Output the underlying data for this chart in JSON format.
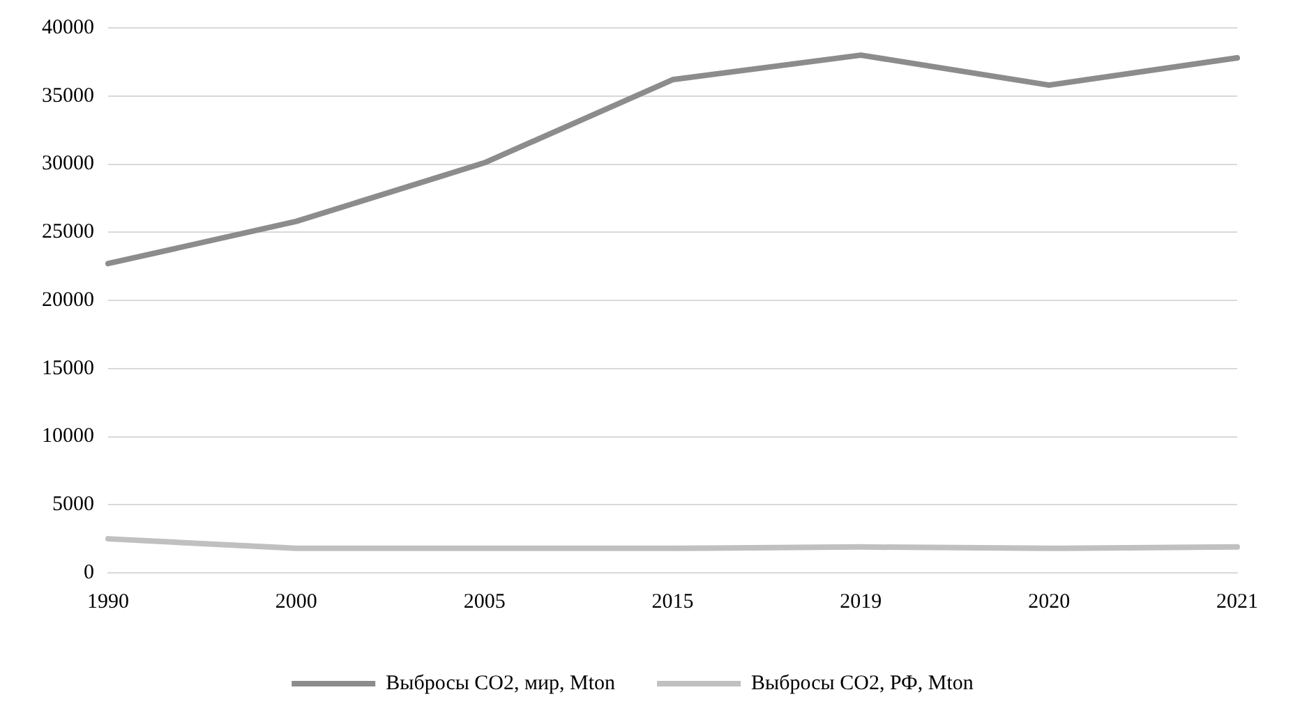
{
  "chart_data": {
    "type": "line",
    "categories": [
      "1990",
      "2000",
      "2005",
      "2015",
      "2019",
      "2020",
      "2021"
    ],
    "series": [
      {
        "name": "Выбросы CO2, мир, Mton",
        "color": "#8c8c8c",
        "values": [
          22700,
          25800,
          30100,
          36200,
          38000,
          35800,
          37800
        ]
      },
      {
        "name": "Выбросы CO2, РФ, Mton",
        "color": "#c0c0c0",
        "values": [
          2500,
          1800,
          1800,
          1800,
          1900,
          1800,
          1900
        ]
      }
    ],
    "ylim": [
      0,
      40000
    ],
    "yticks": [
      0,
      5000,
      10000,
      15000,
      20000,
      25000,
      30000,
      35000,
      40000
    ],
    "grid": "y",
    "legend": "bottom",
    "marker": "none",
    "line_style": "solid"
  }
}
